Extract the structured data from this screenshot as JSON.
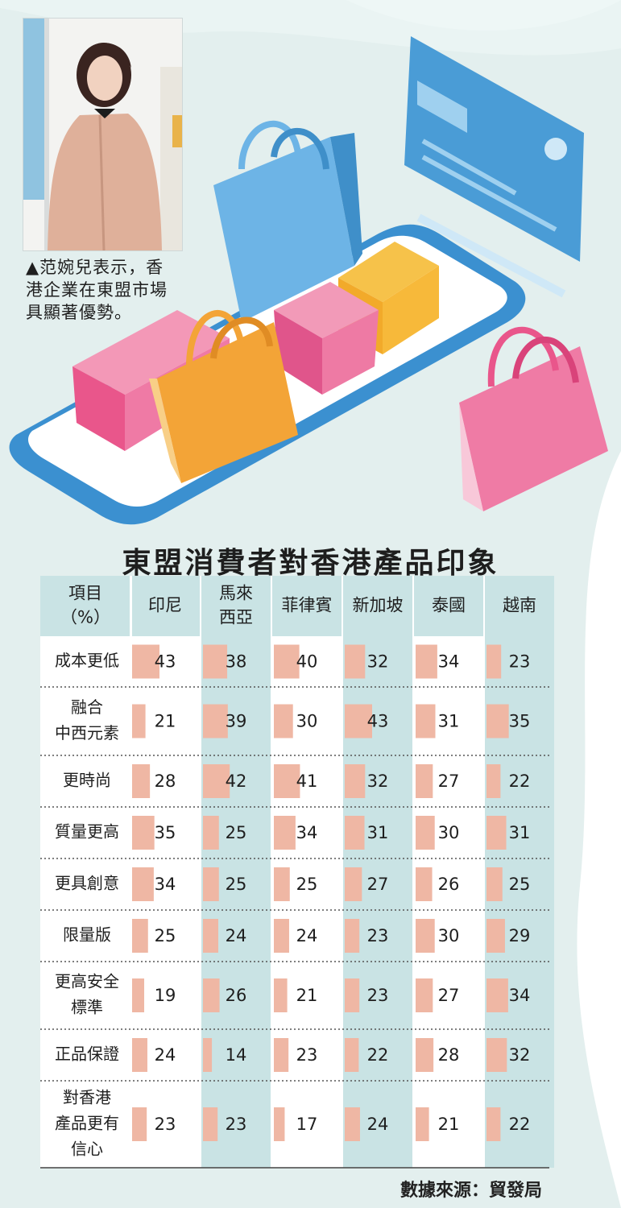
{
  "caption": "▲范婉兒表示，香港企業在東盟市場具顯著優勢。",
  "caption_lines": [
    "▲范婉兒表示，香",
    "港企業在東盟市場",
    "具顯著優勢。"
  ],
  "source": "數據來源：貿發局",
  "colors": {
    "bar": "#efb7a4",
    "header": "#c9e3e4",
    "stripe": "#c9e3e4",
    "rowlabel": "#ffffff"
  },
  "chart_data": {
    "type": "table",
    "title": "東盟消費者對香港產品印象",
    "header_label": "項目\n（%）",
    "columns": [
      "印尼",
      "馬來\n西亞",
      "菲律賓",
      "新加坡",
      "泰國",
      "越南"
    ],
    "rows": [
      {
        "label": "成本更低",
        "values": [
          43,
          38,
          40,
          32,
          34,
          23
        ]
      },
      {
        "label": "融合\n中西元素",
        "values": [
          21,
          39,
          30,
          43,
          31,
          35
        ]
      },
      {
        "label": "更時尚",
        "values": [
          28,
          42,
          41,
          32,
          27,
          22
        ]
      },
      {
        "label": "質量更高",
        "values": [
          35,
          25,
          34,
          31,
          30,
          31
        ]
      },
      {
        "label": "更具創意",
        "values": [
          34,
          25,
          25,
          27,
          26,
          25
        ]
      },
      {
        "label": "限量版",
        "values": [
          25,
          24,
          24,
          23,
          30,
          29
        ]
      },
      {
        "label": "更高安全\n標準",
        "values": [
          19,
          26,
          21,
          23,
          27,
          34
        ]
      },
      {
        "label": "正品保證",
        "values": [
          24,
          14,
          23,
          22,
          28,
          32
        ]
      },
      {
        "label": "對香港\n產品更有\n信心",
        "values": [
          23,
          23,
          17,
          24,
          21,
          22
        ]
      }
    ]
  }
}
